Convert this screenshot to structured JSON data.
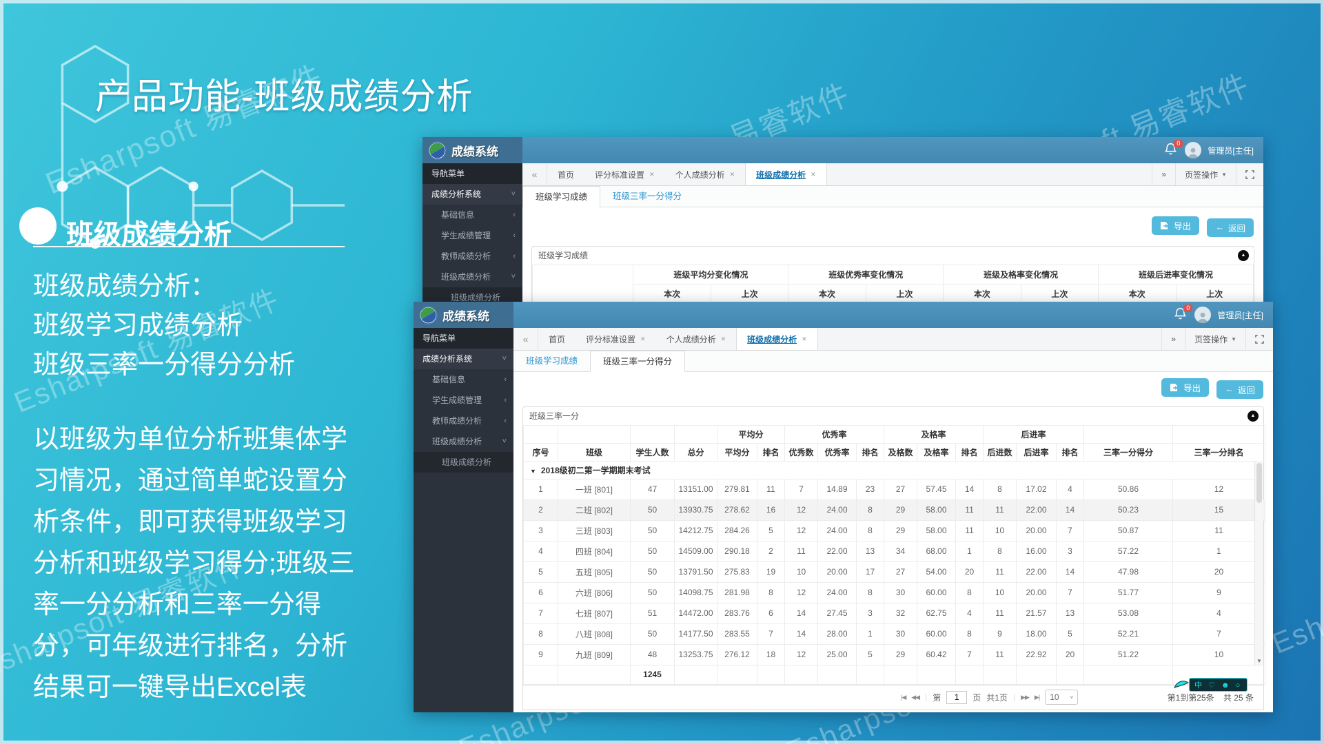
{
  "slide": {
    "title": "产品功能-班级成绩分析",
    "section_heading": "班级成绩分析",
    "intro_lines": [
      "班级成绩分析：",
      "班级学习成绩分析",
      "班级三率一分得分分析"
    ],
    "paragraph": "以班级为单位分析班集体学习情况，通过简单蛇设置分析条件，即可获得班级学习分析和班级学习得分;班级三率一分分析和三率一分得分，可年级进行排名，分析结果可一键导出Excel表",
    "watermark": "Esharpsoft 易睿软件"
  },
  "app": {
    "brand": "成绩系统",
    "nav_menu_title": "导航菜单",
    "notification_count": "0",
    "user_label": "管理员[主任]",
    "tab_ops_label": "页签操作",
    "export_label": "导出",
    "back_label": "返回",
    "sidebar": [
      {
        "label": "成绩分析系统",
        "chevron": "down",
        "level": 1
      },
      {
        "label": "基础信息",
        "chevron": "left",
        "level": 2
      },
      {
        "label": "学生成绩管理",
        "chevron": "left",
        "level": 2
      },
      {
        "label": "教师成绩分析",
        "chevron": "left",
        "level": 2
      },
      {
        "label": "班级成绩分析",
        "chevron": "down",
        "level": 2
      },
      {
        "label": "班级成绩分析",
        "chevron": "none",
        "level": 3
      }
    ],
    "tabs": [
      {
        "label": "首页",
        "closable": false,
        "active": false
      },
      {
        "label": "评分标准设置",
        "closable": true,
        "active": false
      },
      {
        "label": "个人成绩分析",
        "closable": true,
        "active": false
      },
      {
        "label": "班级成绩分析",
        "closable": true,
        "active": true
      }
    ]
  },
  "window1": {
    "subtabs": [
      {
        "label": "班级学习成绩",
        "active": true
      },
      {
        "label": "班级三率一分得分",
        "active": false
      }
    ],
    "panel_title": "班级学习成绩",
    "group_headers": [
      "班级平均分变化情况",
      "班级优秀率变化情况",
      "班级及格率变化情况",
      "班级后进率变化情况"
    ],
    "sub_headers": [
      "本次",
      "上次"
    ]
  },
  "window2": {
    "subtabs": [
      {
        "label": "班级学习成绩",
        "active": false
      },
      {
        "label": "班级三率一分得分",
        "active": true
      }
    ],
    "panel_title": "班级三率一分",
    "table": {
      "group_headers": [
        "平均分",
        "优秀率",
        "及格率",
        "后进率"
      ],
      "leaf_headers": [
        "序号",
        "班级",
        "学生人数",
        "总分",
        "平均分",
        "排名",
        "优秀数",
        "优秀率",
        "排名",
        "及格数",
        "及格率",
        "排名",
        "后进数",
        "后进率",
        "排名",
        "三率一分得分",
        "三率一分排名"
      ],
      "section_label": "2018级初二第一学期期末考试",
      "selected_row_index": 1,
      "rows": [
        [
          "1",
          "一班  [801]",
          "47",
          "13151.00",
          "279.81",
          "11",
          "7",
          "14.89",
          "23",
          "27",
          "57.45",
          "14",
          "8",
          "17.02",
          "4",
          "50.86",
          "12"
        ],
        [
          "2",
          "二班  [802]",
          "50",
          "13930.75",
          "278.62",
          "16",
          "12",
          "24.00",
          "8",
          "29",
          "58.00",
          "11",
          "11",
          "22.00",
          "14",
          "50.23",
          "15"
        ],
        [
          "3",
          "三班  [803]",
          "50",
          "14212.75",
          "284.26",
          "5",
          "12",
          "24.00",
          "8",
          "29",
          "58.00",
          "11",
          "10",
          "20.00",
          "7",
          "50.87",
          "11"
        ],
        [
          "4",
          "四班  [804]",
          "50",
          "14509.00",
          "290.18",
          "2",
          "11",
          "22.00",
          "13",
          "34",
          "68.00",
          "1",
          "8",
          "16.00",
          "3",
          "57.22",
          "1"
        ],
        [
          "5",
          "五班  [805]",
          "50",
          "13791.50",
          "275.83",
          "19",
          "10",
          "20.00",
          "17",
          "27",
          "54.00",
          "20",
          "11",
          "22.00",
          "14",
          "47.98",
          "20"
        ],
        [
          "6",
          "六班  [806]",
          "50",
          "14098.75",
          "281.98",
          "8",
          "12",
          "24.00",
          "8",
          "30",
          "60.00",
          "8",
          "10",
          "20.00",
          "7",
          "51.77",
          "9"
        ],
        [
          "7",
          "七班  [807]",
          "51",
          "14472.00",
          "283.76",
          "6",
          "14",
          "27.45",
          "3",
          "32",
          "62.75",
          "4",
          "11",
          "21.57",
          "13",
          "53.08",
          "4"
        ],
        [
          "8",
          "八班  [808]",
          "50",
          "14177.50",
          "283.55",
          "7",
          "14",
          "28.00",
          "1",
          "30",
          "60.00",
          "8",
          "9",
          "18.00",
          "5",
          "52.21",
          "7"
        ],
        [
          "9",
          "九班  [809]",
          "48",
          "13253.75",
          "276.12",
          "18",
          "12",
          "25.00",
          "5",
          "29",
          "60.42",
          "7",
          "11",
          "22.92",
          "20",
          "51.22",
          "10"
        ]
      ],
      "total_students": "1245"
    },
    "pager": {
      "page_prefix": "第",
      "page_value": "1",
      "page_suffix": "页",
      "total_pages": "共1页",
      "page_size": "10",
      "range_text": "第1到第25条",
      "total_text": "共 25 条"
    }
  },
  "icons": {
    "close": "✕",
    "chevron_down": "˅",
    "chevron_left": "‹",
    "collapse_left": "«",
    "expand_right": "»",
    "caret_down": "▼",
    "section_caret": "▼",
    "back_arrow": "←",
    "panel_tool": "▲",
    "pager_first": "|◀",
    "pager_prev": "◀◀",
    "pager_next": "▶▶",
    "pager_last": "▶|",
    "scroll_down": "▼",
    "select_caret": "˅",
    "ime_glyphs": "中 ♡ ☻ ○"
  }
}
